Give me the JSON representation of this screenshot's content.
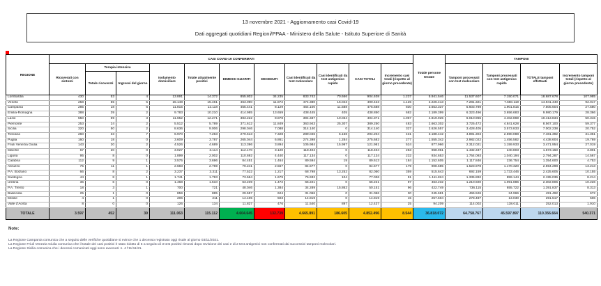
{
  "header": {
    "line1": "13 novembre 2021 - Aggiornamento casi Covid-19",
    "line2": "Dati aggregati quotidiani Regioni/PPAA - Ministero della Salute - Istituto Superiore di Sanità"
  },
  "table": {
    "banner_confermati": "CASI COVID-19 CONFERMATI",
    "banner_tamponi": "TAMPONI",
    "col_regione": "REGIONE",
    "col_ricoverati": "Ricoverati con sintomi",
    "col_terapia": "Terapia intensiva",
    "col_terapia_totale": "Totale ricoverati",
    "col_terapia_ingressi": "Ingressi del giorno",
    "col_isolamento": "Isolamento domiciliare",
    "col_positivi": "Totale attualmente positivi",
    "col_guariti": "DIMESSI GUARITI",
    "col_deceduti": "DECEDUTI",
    "col_casi_molecolare": "Casi identificati da test molecolare",
    "col_casi_antigenico": "Casi identificati da test antigenico rapido",
    "col_casi_totali": "CASI TOTALI",
    "col_incremento_casi": "Incremento casi totali (rispetto al giorno precedente)",
    "col_testate": "Totale persone testate",
    "col_tamponi_molecolare": "Tamponi processati con test molecolare",
    "col_tamponi_antigenico": "Tamponi processati con test antigenico rapido",
    "col_tamponi_totale": "TOTALE tamponi effettuati",
    "col_incremento_tamponi": "Incremento tamponi totali (rispetto al giorno precedente)",
    "rows": [
      {
        "regione": "Lombardia",
        "values": [
          "430",
          "53",
          "4",
          "13.891",
          "14.372",
          "855.802",
          "34.235",
          "833.742",
          "70.666",
          "904.408",
          "1.237",
          "5.941.546",
          "11.537.607",
          "7.150.071",
          "18.687.678",
          "107.985"
        ]
      },
      {
        "regione": "Veneto",
        "values": [
          "258",
          "55",
          "5",
          "15.148",
          "15.461",
          "463.090",
          "11.872",
          "474.380",
          "16.043",
          "490.423",
          "1.125",
          "2.226.413",
          "7.281.321",
          "7.660.119",
          "14.941.440",
          "92.017"
        ]
      },
      {
        "regione": "Campania",
        "values": [
          "285",
          "18",
          "6",
          "11.815",
          "12.118",
          "455.441",
          "8.129",
          "464.100",
          "11.588",
          "475.688",
          "830",
          "3.653.337",
          "5.603.789",
          "1.901.815",
          "7.505.604",
          "27.580"
        ]
      },
      {
        "regione": "Emilia-Romagna",
        "values": [
          "388",
          "39",
          "2",
          "9.783",
          "10.210",
          "414.985",
          "13.659",
          "438.445",
          "405",
          "438.850",
          "682",
          "2.189.399",
          "6.323.496",
          "3.656.683",
          "9.980.179",
          "28.366"
        ]
      },
      {
        "regione": "Lazio",
        "values": [
          "550",
          "69",
          "3",
          "11.652",
          "12.271",
          "383.222",
          "8.878",
          "394.337",
          "10.034",
          "404.371",
          "1.067",
          "4.819.925",
          "6.010.965",
          "4.402.869",
          "10.413.834",
          "50.315"
        ]
      },
      {
        "regione": "Piemonte",
        "values": [
          "253",
          "24",
          "2",
          "5.512",
          "5.789",
          "371.612",
          "11.849",
          "363.943",
          "25.307",
          "389.250",
          "483",
          "2.663.302",
          "3.725.472",
          "4.841.628",
          "8.567.100",
          "59.377"
        ]
      },
      {
        "regione": "Sicilia",
        "values": [
          "320",
          "50",
          "2",
          "8.636",
          "9.006",
          "298.046",
          "7.088",
          "314.140",
          "0",
          "314.140",
          "327",
          "2.626.557",
          "3.428.405",
          "3.573.833",
          "7.002.238",
          "20.752"
        ]
      },
      {
        "regione": "Toscana",
        "values": [
          "260",
          "33",
          "7",
          "6.970",
          "7.263",
          "279.613",
          "7.328",
          "289.046",
          "5.158",
          "294.204",
          "431",
          "3.188.442",
          "4.891.304",
          "2.590.088",
          "7.481.392",
          "31.361"
        ]
      },
      {
        "regione": "Puglia",
        "values": [
          "160",
          "18",
          "0",
          "3.609",
          "3.787",
          "265.044",
          "6.861",
          "274.398",
          "1.284",
          "275.682",
          "277",
          "1.555.342",
          "2.982.022",
          "1.456.582",
          "4.438.604",
          "19.769"
        ]
      },
      {
        "regione": "Friuli Venezia Giulia",
        "values": [
          "143",
          "20",
          "2",
          "4.526",
          "4.689",
          "113.396",
          "3.894",
          "105.984",
          "15.997",
          "121.981",
          "524",
          "877.966",
          "2.312.021",
          "1.159.933",
          "3.471.954",
          "27.019"
        ]
      },
      {
        "regione": "Marche",
        "values": [
          "67",
          "20",
          "0",
          "3.027",
          "3.114",
          "112.170",
          "3.120",
          "118.404",
          "0",
          "118.404",
          "253",
          "968.961",
          "1.432.347",
          "240.803",
          "1.673.150",
          "3.801"
        ]
      },
      {
        "regione": "Liguria",
        "values": [
          "95",
          "8",
          "0",
          "1.899",
          "2.002",
          "110.692",
          "4.440",
          "117.134",
          "0",
          "117.134",
          "232",
          "934.653",
          "1.754.093",
          "1.040.194",
          "2.794.287",
          "14.567"
        ]
      },
      {
        "regione": "Calabria",
        "values": [
          "112",
          "9",
          "1",
          "3.575",
          "3.696",
          "84.451",
          "1.464",
          "89.594",
          "19",
          "89.613",
          "184",
          "1.152.605",
          "1.117.846",
          "236.754",
          "1.354.600",
          "4.753"
        ]
      },
      {
        "regione": "Abruzzo",
        "values": [
          "75",
          "11",
          "1",
          "2.683",
          "2.769",
          "79.241",
          "2.567",
          "84.577",
          "0",
          "84.577",
          "179",
          "908.685",
          "1.523.978",
          "1.170.320",
          "2.694.298",
          "13.213"
        ]
      },
      {
        "regione": "P.A. Bolzano",
        "values": [
          "66",
          "8",
          "2",
          "3.237",
          "3.311",
          "77.522",
          "1.217",
          "68.798",
          "13.252",
          "82.050",
          "359",
          "515.643",
          "692.159",
          "1.733.446",
          "2.425.605",
          "10.155"
        ]
      },
      {
        "regione": "Sardegna",
        "values": [
          "44",
          "8",
          "1",
          "1.741",
          "1.793",
          "73.564",
          "1.679",
          "76.932",
          "104",
          "77.036",
          "91",
          "1.111.824",
          "1.335.892",
          "859.144",
          "2.195.036",
          "8.214"
        ]
      },
      {
        "regione": "Umbria",
        "values": [
          "36",
          "6",
          "0",
          "1.468",
          "1.510",
          "63.239",
          "1.472",
          "66.221",
          "0",
          "66.221",
          "97",
          "463.232",
          "1.210.920",
          "1.091.886",
          "2.302.806",
          "10.226"
        ]
      },
      {
        "regione": "P.A. Trento",
        "values": [
          "18",
          "3",
          "1",
          "700",
          "721",
          "48.046",
          "1.384",
          "34.289",
          "15.862",
          "50.151",
          "96",
          "422.749",
          "736.115",
          "655.722",
          "1.391.837",
          "8.313"
        ]
      },
      {
        "regione": "Basilicata",
        "values": [
          "25",
          "1",
          "0",
          "859",
          "885",
          "29.557",
          "624",
          "31.066",
          "0",
          "31.066",
          "30",
          "245.681",
          "466.526",
          "24.966",
          "491.492",
          "672"
        ]
      },
      {
        "regione": "Molise",
        "values": [
          "4",
          "1",
          "0",
          "206",
          "211",
          "14.105",
          "503",
          "14.819",
          "0",
          "14.819",
          "15",
          "257.604",
          "278.487",
          "13.030",
          "291.517",
          "506"
        ]
      },
      {
        "regione": "Valle d'Aosta",
        "values": [
          "8",
          "0",
          "0",
          "126",
          "134",
          "11.827",
          "476",
          "11.540",
          "897",
          "12.437",
          "25",
          "94.209",
          "114.002",
          "138.011",
          "252.013",
          "1.910"
        ]
      }
    ],
    "totale": {
      "label": "TOTALE",
      "values": [
        "3.597",
        "452",
        "39",
        "111.063",
        "115.112",
        "4.604.645",
        "132.739",
        "4.665.891",
        "186.605",
        "4.852.496",
        "8.544",
        "36.818.072",
        "64.758.767",
        "45.597.897",
        "110.356.664",
        "540.371"
      ]
    }
  },
  "notes": {
    "title": "Note:",
    "lines": [
      "La Regione Campania comunica che a seguito delle verifiche quotidiane si evince che 1 decesso registrato oggi risale al giorno 03/11/2021.",
      "La Regione Friuli Venezia Giulia comunica che il totale dei casi positivi è stato ridotto di 5 a seguito di 3 test positivi rimossi dopo revisione dei casi e di 2 test antigenici non confermati dai successivi tamponi molecolari.",
      "La Regione Sicilia comunica che i decessi comunicati oggi sono avvenuti: n. 4 l'11/11/21."
    ]
  },
  "colors": {
    "guariti_green": "#00b050",
    "deceduti_red": "#ff0000",
    "casi_orange": "#ffc000",
    "testate_cyan": "#2bb9ec",
    "tamponi_lightblue": "#bdd7ee",
    "header_gray": "#bfbfbf"
  }
}
